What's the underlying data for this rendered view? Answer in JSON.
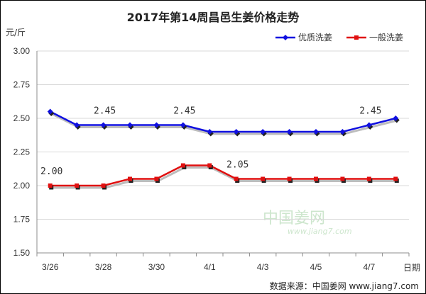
{
  "chart_data": {
    "type": "line",
    "title": "2017年第14周昌邑生姜价格走势",
    "ylabel": "元/斤",
    "xlabel": "日期",
    "ylim": [
      1.5,
      3.0
    ],
    "yticks": [
      "3.00",
      "2.75",
      "2.50",
      "2.25",
      "2.00",
      "1.75",
      "1.50"
    ],
    "categories": [
      "3/26",
      "3/27",
      "3/28",
      "3/29",
      "3/30",
      "3/31",
      "4/1",
      "4/2",
      "4/3",
      "4/4",
      "4/5",
      "4/6",
      "4/7",
      "4/8"
    ],
    "xtick_labels": [
      "3/26",
      "3/28",
      "3/30",
      "4/1",
      "4/3",
      "4/5",
      "4/7"
    ],
    "series": [
      {
        "name": "优质洗姜",
        "color": "#1010e0",
        "values": [
          2.55,
          2.45,
          2.45,
          2.45,
          2.45,
          2.45,
          2.4,
          2.4,
          2.4,
          2.4,
          2.4,
          2.4,
          2.45,
          2.5
        ]
      },
      {
        "name": "一般洗姜",
        "color": "#e01010",
        "values": [
          2.0,
          2.0,
          2.0,
          2.05,
          2.05,
          2.15,
          2.15,
          2.05,
          2.05,
          2.05,
          2.05,
          2.05,
          2.05,
          2.05
        ]
      }
    ],
    "annotations": [
      {
        "text": "2.45",
        "series": 0,
        "index": 2
      },
      {
        "text": "2.45",
        "series": 0,
        "index": 5
      },
      {
        "text": "2.45",
        "series": 0,
        "index": 12
      },
      {
        "text": "2.00",
        "series": 1,
        "index": 0
      },
      {
        "text": "2.05",
        "series": 1,
        "index": 7
      }
    ],
    "grid": true,
    "legend": "top-right"
  },
  "watermark": {
    "text": "中国姜网",
    "url": "www.jiang7.com"
  },
  "source": "数据来源：中国姜网 www.jiang7.com"
}
